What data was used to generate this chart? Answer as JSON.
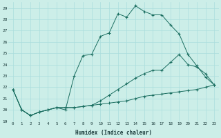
{
  "xlabel": "Humidex (Indice chaleur)",
  "background_color": "#cceee8",
  "grid_color": "#aadddd",
  "line_color": "#1a6e60",
  "xlim": [
    -0.5,
    23.5
  ],
  "ylim": [
    19,
    29.5
  ],
  "yticks": [
    19,
    20,
    21,
    22,
    23,
    24,
    25,
    26,
    27,
    28,
    29
  ],
  "xticks": [
    0,
    1,
    2,
    3,
    4,
    5,
    6,
    7,
    8,
    9,
    10,
    11,
    12,
    13,
    14,
    15,
    16,
    17,
    18,
    19,
    20,
    21,
    22,
    23
  ],
  "series": [
    {
      "x": [
        0,
        1,
        2,
        3,
        4,
        5,
        6,
        7,
        8,
        9,
        10,
        11,
        12,
        13,
        14,
        15,
        16,
        17,
        18,
        19,
        20,
        21,
        22,
        23
      ],
      "y": [
        21.8,
        20.0,
        19.5,
        19.8,
        20.0,
        20.2,
        20.0,
        23.0,
        24.8,
        24.9,
        26.5,
        26.8,
        28.5,
        28.2,
        29.2,
        28.7,
        28.4,
        28.4,
        27.5,
        26.7,
        24.9,
        23.9,
        22.9,
        22.2
      ]
    },
    {
      "x": [
        0,
        1,
        2,
        3,
        4,
        5,
        6,
        7,
        8,
        9,
        10,
        11,
        12,
        13,
        14,
        15,
        16,
        17,
        18,
        19,
        20,
        21,
        22,
        23
      ],
      "y": [
        21.8,
        20.0,
        19.5,
        19.8,
        20.0,
        20.2,
        20.2,
        20.2,
        20.3,
        20.4,
        20.8,
        21.3,
        21.8,
        22.3,
        22.8,
        23.2,
        23.5,
        23.5,
        24.2,
        24.9,
        24.0,
        23.8,
        23.2,
        22.2
      ]
    },
    {
      "x": [
        0,
        1,
        2,
        3,
        4,
        5,
        6,
        7,
        8,
        9,
        10,
        11,
        12,
        13,
        14,
        15,
        16,
        17,
        18,
        19,
        20,
        21,
        22,
        23
      ],
      "y": [
        21.8,
        20.0,
        19.5,
        19.8,
        20.0,
        20.2,
        20.2,
        20.2,
        20.3,
        20.4,
        20.5,
        20.6,
        20.7,
        20.8,
        21.0,
        21.2,
        21.3,
        21.4,
        21.5,
        21.6,
        21.7,
        21.8,
        22.0,
        22.2
      ]
    }
  ]
}
